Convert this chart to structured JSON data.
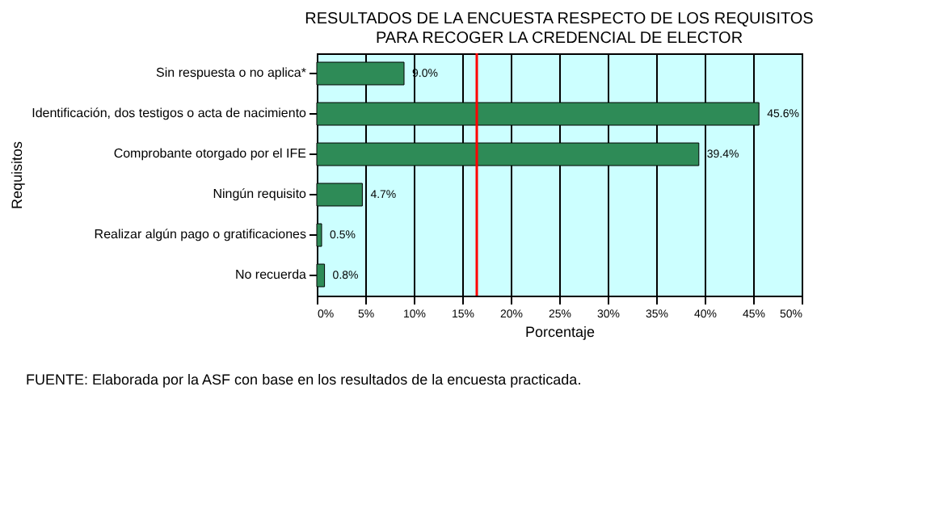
{
  "chart_data": {
    "type": "bar",
    "orientation": "horizontal",
    "title": [
      "RESULTADOS DE LA ENCUESTA RESPECTO DE LOS REQUISITOS",
      "PARA RECOGER LA CREDENCIAL DE ELECTOR"
    ],
    "xlabel": "Porcentaje",
    "ylabel": "Requisitos",
    "categories": [
      "Sin respuesta o no aplica*",
      "Identificación, dos testigos o acta de nacimiento",
      "Comprobante otorgado por el IFE",
      "Ningún requisito",
      "Realizar algún pago o gratificaciones",
      "No recuerda"
    ],
    "values": [
      9.0,
      45.6,
      39.4,
      4.7,
      0.5,
      0.8
    ],
    "value_labels": [
      "9.0%",
      "45.6%",
      "39.4%",
      "4.7%",
      "0.5%",
      "0.8%"
    ],
    "color": "#2e8b57",
    "xlim": [
      0,
      50
    ],
    "xticks": [
      {
        "value": 0,
        "label": "0%"
      },
      {
        "value": 5,
        "label": "5%"
      },
      {
        "value": 10,
        "label": "10%"
      },
      {
        "value": 15,
        "label": "15%"
      },
      {
        "value": 20,
        "label": "20%"
      },
      {
        "value": 25,
        "label": "25%"
      },
      {
        "value": 30,
        "label": "30%"
      },
      {
        "value": 35,
        "label": "35%"
      },
      {
        "value": 40,
        "label": "40%"
      },
      {
        "value": 45,
        "label": "45%"
      },
      {
        "value": 50,
        "label": "50%"
      }
    ],
    "grid": "x",
    "ref_lines": [
      {
        "axis": "x",
        "value": 16.5,
        "label": null,
        "color": "#ff0000"
      }
    ],
    "annotations": [
      "FUENTE: Elaborada por la ASF con base en los resultados de la encuesta practicada."
    ]
  }
}
